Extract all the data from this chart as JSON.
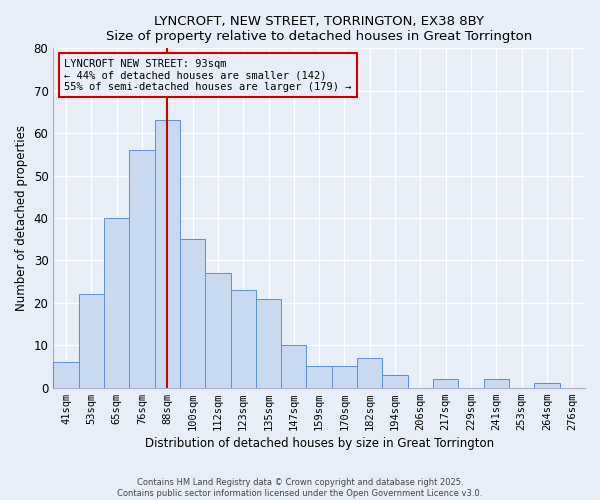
{
  "title": "LYNCROFT, NEW STREET, TORRINGTON, EX38 8BY",
  "subtitle": "Size of property relative to detached houses in Great Torrington",
  "xlabel": "Distribution of detached houses by size in Great Torrington",
  "ylabel": "Number of detached properties",
  "bin_labels": [
    "41sqm",
    "53sqm",
    "65sqm",
    "76sqm",
    "88sqm",
    "100sqm",
    "112sqm",
    "123sqm",
    "135sqm",
    "147sqm",
    "159sqm",
    "170sqm",
    "182sqm",
    "194sqm",
    "206sqm",
    "217sqm",
    "229sqm",
    "241sqm",
    "253sqm",
    "264sqm",
    "276sqm"
  ],
  "bar_values": [
    6,
    22,
    40,
    56,
    63,
    35,
    27,
    23,
    21,
    10,
    5,
    5,
    7,
    3,
    0,
    2,
    0,
    2,
    0,
    1,
    0
  ],
  "bar_color": "#c9d9f0",
  "bar_edge_color": "#5b8ed6",
  "ylim": [
    0,
    80
  ],
  "yticks": [
    0,
    10,
    20,
    30,
    40,
    50,
    60,
    70,
    80
  ],
  "vline_x_index": 5,
  "marker_label_line1": "LYNCROFT NEW STREET: 93sqm",
  "marker_label_line2": "← 44% of detached houses are smaller (142)",
  "marker_label_line3": "55% of semi-detached houses are larger (179) →",
  "vline_color": "#cc0000",
  "annotation_box_edge_color": "#cc0000",
  "background_color": "#e8eef8",
  "grid_color": "#ffffff",
  "footer_line1": "Contains HM Land Registry data © Crown copyright and database right 2025.",
  "footer_line2": "Contains public sector information licensed under the Open Government Licence v3.0."
}
